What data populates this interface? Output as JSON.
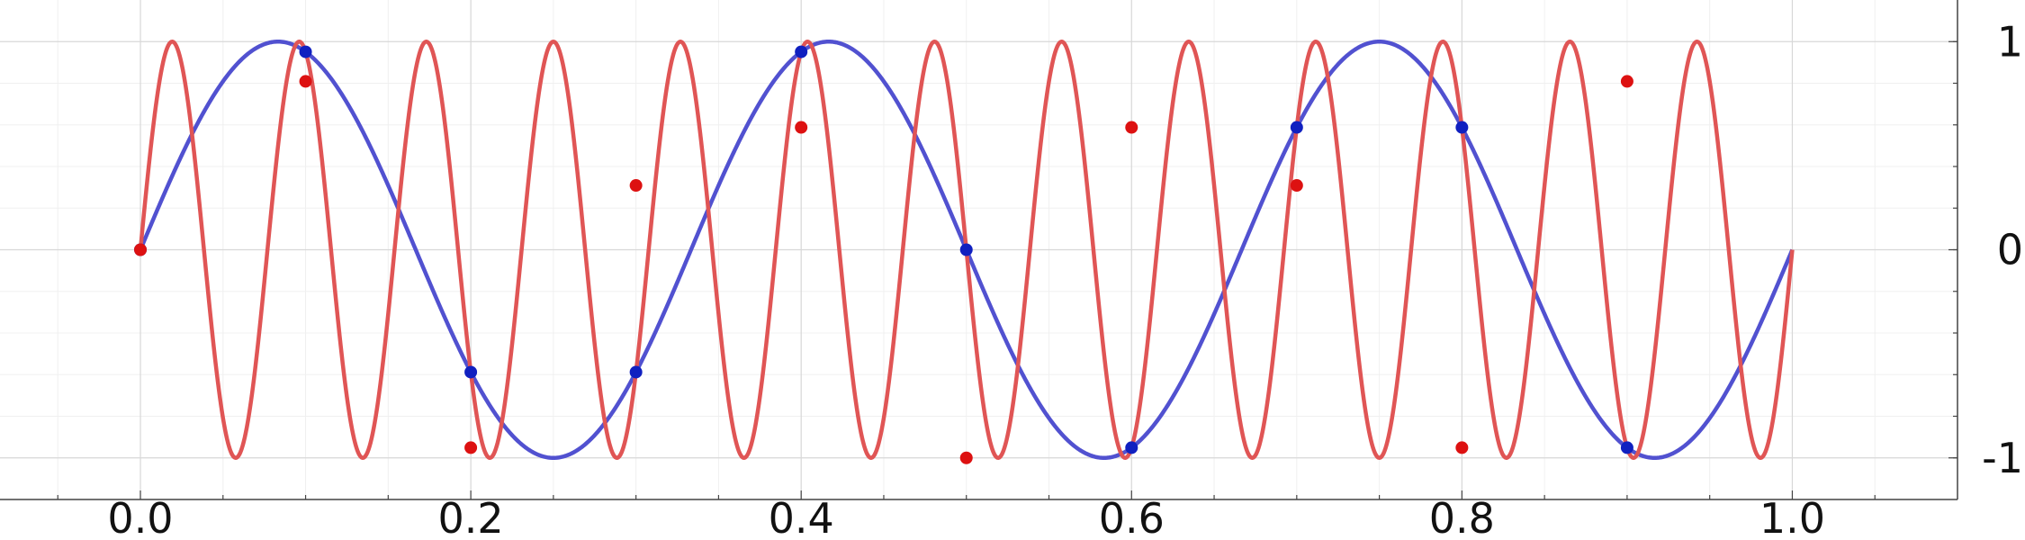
{
  "chart_data": {
    "type": "line",
    "title": "",
    "xlabel": "",
    "ylabel": "",
    "xlim": [
      -0.085,
      1.1
    ],
    "ylim": [
      -1.2,
      1.2
    ],
    "x_ticks": [
      "0.0",
      "0.2",
      "0.4",
      "0.6",
      "0.8",
      "1.0"
    ],
    "y_ticks": [
      "1",
      "0",
      "-1"
    ],
    "y_axis_side": "right",
    "grid": true,
    "series": [
      {
        "kind": "curve",
        "function": "sin",
        "frequency": 3,
        "x_range": [
          0,
          1
        ],
        "color": "#5151d0"
      },
      {
        "kind": "curve",
        "function": "sin",
        "frequency": 13,
        "x_range": [
          0,
          1
        ],
        "color": "#e05555"
      },
      {
        "kind": "samples",
        "color": "#1020c0",
        "x": [
          0.0,
          0.1,
          0.2,
          0.3,
          0.4,
          0.5,
          0.6,
          0.7,
          0.8,
          0.9
        ],
        "y": [
          0.0,
          0.951,
          -0.588,
          -0.588,
          0.951,
          0.0,
          -0.951,
          0.588,
          0.588,
          -0.951
        ]
      },
      {
        "kind": "samples",
        "color": "#dd1111",
        "x": [
          0.0,
          0.1,
          0.2,
          0.3,
          0.4,
          0.5,
          0.6,
          0.7,
          0.8,
          0.9
        ],
        "y": [
          0.0,
          0.809,
          -0.951,
          0.309,
          0.588,
          -1.0,
          0.588,
          0.309,
          -0.951,
          0.809
        ]
      }
    ]
  }
}
